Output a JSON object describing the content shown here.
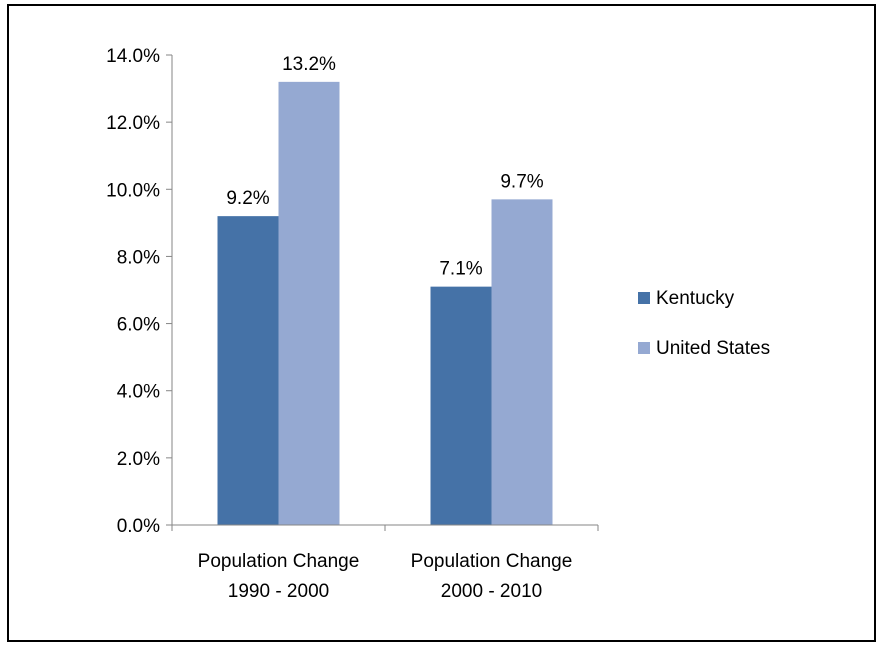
{
  "chart_data": {
    "type": "bar",
    "categories": [
      [
        "Population Change",
        "1990 - 2000"
      ],
      [
        "Population Change",
        "2000 - 2010"
      ]
    ],
    "series": [
      {
        "name": "Kentucky",
        "values": [
          9.2,
          7.1
        ],
        "labels": [
          "9.2%",
          "7.1%"
        ],
        "color": "#4572A7"
      },
      {
        "name": "United States",
        "values": [
          13.2,
          9.7
        ],
        "labels": [
          "13.2%",
          "9.7%"
        ],
        "color": "#95A9D2"
      }
    ],
    "ylim": [
      0,
      14
    ],
    "yticks": [
      0,
      2,
      4,
      6,
      8,
      10,
      12,
      14
    ],
    "ytick_labels": [
      "0.0%",
      "2.0%",
      "4.0%",
      "6.0%",
      "8.0%",
      "10.0%",
      "12.0%",
      "14.0%"
    ],
    "title": "",
    "xlabel": "",
    "ylabel": "",
    "grid": false,
    "legend_position": "right"
  }
}
